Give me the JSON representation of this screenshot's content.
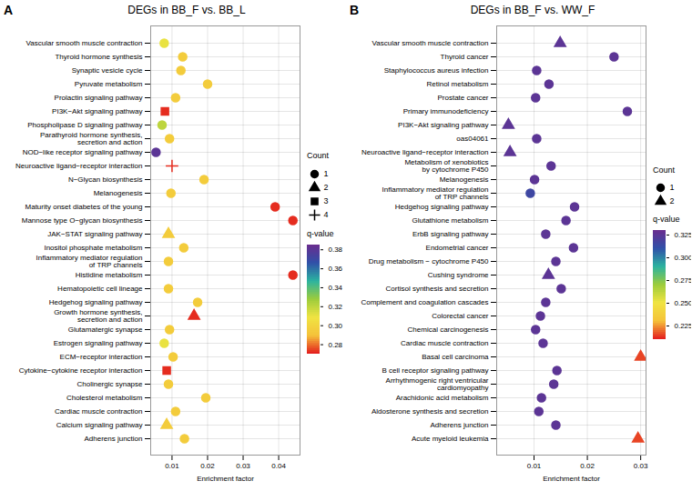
{
  "chart_data": [
    {
      "type": "scatter",
      "panel_label": "A",
      "title": "DEGs in BB_F vs. BB_L",
      "x_label": "Enrichment factor",
      "categories": [
        "Vascular smooth muscle contraction",
        "Thyroid hormone synthesis",
        "Synaptic vesicle cycle",
        "Pyruvate metabolism",
        "Prolactin signaling pathway",
        "PI3K−Akt signaling pathway",
        "Phospholipase D signaling pathway",
        "Parathyroid hormone synthesis,\nsecretion and action",
        "NOD−like receptor signaling pathway",
        "Neuroactive ligand−receptor interaction",
        "N−Glycan biosynthesis",
        "Melanogenesis",
        "Maturity onset diabetes of the young",
        "Mannose type O−glycan biosynthesis",
        "JAK−STAT signaling pathway",
        "Inositol phosphate metabolism",
        "Inflammatory mediator regulation\nof TRP channels",
        "Histidine metabolism",
        "Hematopoietic cell lineage",
        "Hedgehog signaling pathway",
        "Growth hormone synthesis,\nsecretion and action",
        "Glutamatergic synapse",
        "Estrogen signaling pathway",
        "ECM−receptor interaction",
        "Cytokine−cytokine receptor interaction",
        "Cholinergic synapse",
        "Cholesterol metabolism",
        "Cardiac muscle contraction",
        "Calcium signaling pathway",
        "Adherens junction"
      ],
      "values": [
        0.0078,
        0.013,
        0.0125,
        0.02,
        0.011,
        0.008,
        0.0072,
        0.0093,
        0.0055,
        0.01,
        0.019,
        0.0097,
        0.039,
        0.044,
        0.009,
        0.0133,
        0.009,
        0.044,
        0.009,
        0.0172,
        0.0162,
        0.0093,
        0.0078,
        0.0103,
        0.0085,
        0.009,
        0.0195,
        0.011,
        0.0085,
        0.0135
      ],
      "count": [
        1,
        1,
        1,
        1,
        1,
        3,
        1,
        1,
        1,
        4,
        1,
        1,
        1,
        1,
        2,
        1,
        1,
        1,
        1,
        1,
        2,
        1,
        1,
        1,
        3,
        1,
        1,
        1,
        2,
        1
      ],
      "q_value": [
        0.31,
        0.295,
        0.295,
        0.295,
        0.295,
        0.272,
        0.32,
        0.295,
        0.38,
        0.272,
        0.295,
        0.295,
        0.272,
        0.272,
        0.295,
        0.295,
        0.295,
        0.272,
        0.295,
        0.295,
        0.272,
        0.295,
        0.31,
        0.295,
        0.272,
        0.295,
        0.295,
        0.295,
        0.295,
        0.295
      ],
      "xlim": [
        0.004,
        0.046
      ],
      "xticks": [
        0.01,
        0.02,
        0.03,
        0.04
      ],
      "grid": true,
      "count_legend": {
        "title": "Count",
        "values": [
          1,
          2,
          3,
          4
        ],
        "markers": [
          "circle",
          "triangle",
          "square",
          "plus"
        ]
      },
      "color_bar": {
        "title": "q-value",
        "range": [
          0.27,
          0.385
        ],
        "ticks": [
          0.28,
          {
            "value": 0.3,
            "label": "0.30"
          },
          0.32,
          0.34,
          0.36,
          0.38
        ]
      }
    },
    {
      "type": "scatter",
      "panel_label": "B",
      "title": "DEGs in BB_F vs. WW_F",
      "x_label": "Enrichment factor",
      "categories": [
        "Vascular smooth muscle contraction",
        "Thyroid cancer",
        "Staphylococcus aureus infection",
        "Retinol metabolism",
        "Prostate cancer",
        "Primary immunodeficiency",
        "PI3K−Akt signaling pathway",
        "oas04061",
        "Neuroactive ligand−receptor interaction",
        "Metabolism of xenobiotics\nby cytochrome P450",
        "Melanogenesis",
        "Inflammatory mediator regulation\nof TRP channels",
        "Hedgehog signaling pathway",
        "Glutathione metabolism",
        "ErbB signaling pathway",
        "Endometrial cancer",
        "Drug metabolism − cytochrome P450",
        "Cushing syndrome",
        "Cortisol synthesis and secretion",
        "Complement and coagulation cascades",
        "Colorectal cancer",
        "Chemical carcinogenesis",
        "Cardiac muscle contraction",
        "Basal cell carcinoma",
        "B cell receptor signaling pathway",
        "Arrhythmogenic right ventricular\ncardiomyopathy",
        "Arachidonic acid metabolism",
        "Aldosterone synthesis and secretion",
        "Adherens junction",
        "Acute myeloid leukemia"
      ],
      "values": [
        0.0149,
        0.025,
        0.0105,
        0.0128,
        0.0103,
        0.0275,
        0.0052,
        0.0105,
        0.0055,
        0.0132,
        0.0101,
        0.0093,
        0.0176,
        0.016,
        0.0122,
        0.0174,
        0.0141,
        0.0127,
        0.0151,
        0.0122,
        0.0112,
        0.0103,
        0.0117,
        0.03,
        0.0143,
        0.0137,
        0.0114,
        0.0109,
        0.0141,
        0.0295
      ],
      "count": [
        2,
        1,
        1,
        1,
        1,
        1,
        2,
        1,
        2,
        1,
        1,
        1,
        1,
        1,
        1,
        1,
        1,
        2,
        1,
        1,
        1,
        1,
        1,
        2,
        1,
        1,
        1,
        1,
        1,
        2
      ],
      "q_value": [
        0.325,
        0.325,
        0.325,
        0.325,
        0.325,
        0.325,
        0.325,
        0.325,
        0.325,
        0.325,
        0.325,
        0.315,
        0.325,
        0.325,
        0.325,
        0.325,
        0.325,
        0.325,
        0.325,
        0.325,
        0.325,
        0.325,
        0.325,
        0.215,
        0.325,
        0.325,
        0.325,
        0.325,
        0.325,
        0.215
      ],
      "xlim": [
        0.003,
        0.031
      ],
      "xticks": [
        0.01,
        0.02,
        0.03
      ],
      "grid": true,
      "count_legend": {
        "title": "Count",
        "values": [
          1,
          2
        ],
        "markers": [
          "circle",
          "triangle"
        ]
      },
      "color_bar": {
        "title": "q-value",
        "range": [
          0.21,
          0.33
        ],
        "ticks": [
          0.225,
          {
            "value": 0.25,
            "label": "0.250"
          },
          0.275,
          {
            "value": 0.3,
            "label": "0.300"
          },
          0.325
        ]
      }
    }
  ]
}
